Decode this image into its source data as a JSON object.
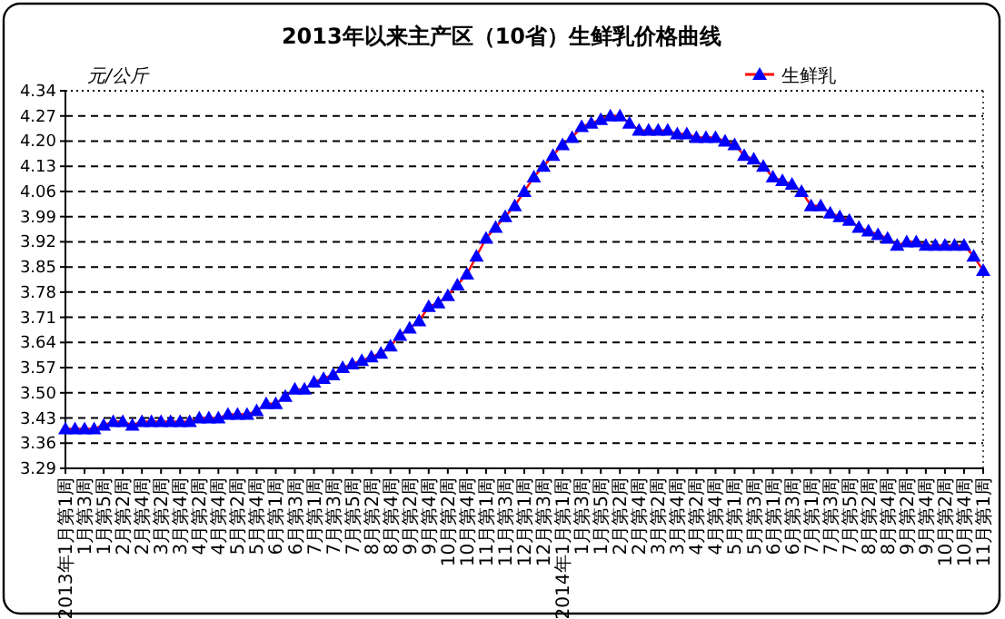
{
  "chart_data": {
    "type": "line",
    "title": "2013年以来主产区（10省）生鲜乳价格曲线",
    "ylabel": "元/公斤",
    "categories": [
      "2013年1月第1周",
      null,
      "1月第3周",
      null,
      "1月第5周",
      null,
      "2月第2周",
      null,
      "2月第4周",
      null,
      "3月第2周",
      null,
      "3月第4周",
      null,
      "4月第2周",
      null,
      "4月第4周",
      null,
      "5月第2周",
      null,
      "5月第4周",
      null,
      "6月第1周",
      null,
      "6月第3周",
      null,
      "7月第1周",
      null,
      "7月第3周",
      null,
      "7月第5周",
      null,
      "8月第2周",
      null,
      "8月第4周",
      null,
      "9月第2周",
      null,
      "9月第4周",
      null,
      "10月第2周",
      null,
      "10月第4周",
      null,
      "11月第1周",
      null,
      "11月第3周",
      null,
      "12月第1周",
      null,
      "12月第3周",
      null,
      "2014年1月第1周",
      null,
      "1月第3周",
      null,
      "1月第5周",
      null,
      "2月第2周",
      null,
      "2月第4周",
      null,
      "3月第2周",
      null,
      "3月第4周",
      null,
      "4月第2周",
      null,
      "4月第4周",
      null,
      "5月第1周",
      null,
      "5月第3周",
      null,
      "6月第1周",
      null,
      "6月第3周",
      null,
      "7月第1周",
      null,
      "7月第3周",
      null,
      "7月第5周",
      null,
      "8月第2周",
      null,
      "8月第4周",
      null,
      "9月第2周",
      null,
      "9月第4周",
      null,
      "10月第2周",
      null,
      "10月第4周",
      null,
      "11月第1周"
    ],
    "series": [
      {
        "name": "生鲜乳",
        "color": "#0000ff",
        "values": [
          3.4,
          3.4,
          3.4,
          3.4,
          3.41,
          3.42,
          3.42,
          3.41,
          3.42,
          3.42,
          3.42,
          3.42,
          3.42,
          3.42,
          3.43,
          3.43,
          3.43,
          3.44,
          3.44,
          3.44,
          3.45,
          3.47,
          3.47,
          3.49,
          3.51,
          3.51,
          3.53,
          3.54,
          3.55,
          3.57,
          3.58,
          3.59,
          3.6,
          3.61,
          3.63,
          3.66,
          3.68,
          3.7,
          3.74,
          3.75,
          3.77,
          3.8,
          3.83,
          3.88,
          3.93,
          3.96,
          3.99,
          4.02,
          4.06,
          4.1,
          4.13,
          4.16,
          4.19,
          4.21,
          4.24,
          4.25,
          4.26,
          4.27,
          4.27,
          4.25,
          4.23,
          4.23,
          4.23,
          4.23,
          4.22,
          4.22,
          4.21,
          4.21,
          4.21,
          4.2,
          4.19,
          4.16,
          4.15,
          4.13,
          4.1,
          4.09,
          4.08,
          4.06,
          4.02,
          4.02,
          4.0,
          3.99,
          3.98,
          3.96,
          3.95,
          3.94,
          3.93,
          3.91,
          3.92,
          3.92,
          3.91,
          3.91,
          3.91,
          3.91,
          3.91,
          3.88,
          3.84
        ]
      }
    ],
    "ylim": [
      3.29,
      4.34
    ],
    "yticks": [
      3.29,
      3.36,
      3.43,
      {
        "value": 3.5,
        "label": "3.50"
      },
      3.57,
      3.64,
      3.71,
      3.78,
      3.85,
      3.92,
      3.99,
      4.06,
      4.13,
      {
        "value": 4.2,
        "label": "4.20"
      },
      4.27,
      4.34
    ],
    "grid": "y",
    "legend": "top right",
    "marker": "triangle"
  }
}
